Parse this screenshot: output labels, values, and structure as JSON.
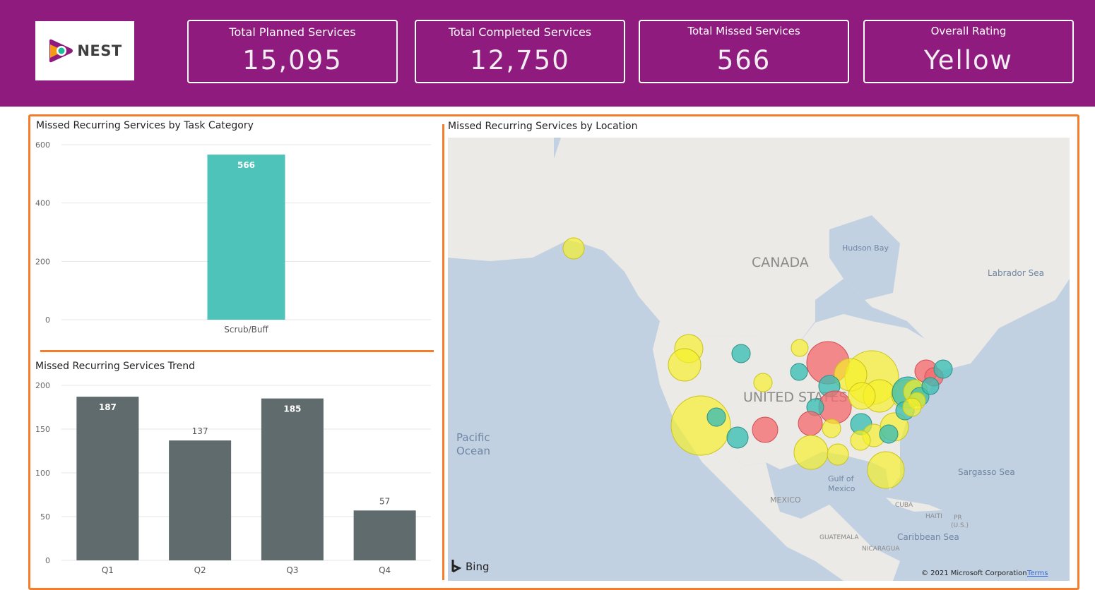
{
  "logo": {
    "text": "NEST"
  },
  "kpis": [
    {
      "label": "Total Planned Services",
      "value": "15,095"
    },
    {
      "label": "Total Completed Services",
      "value": "12,750"
    },
    {
      "label": "Total Missed Services",
      "value": "566"
    },
    {
      "label": "Overall Rating",
      "value": "Yellow"
    }
  ],
  "colors": {
    "header": "#8f1b7f",
    "accent_border": "#f57c2a",
    "teal": "#4dc3b9",
    "dark_bar": "#5f6b6d"
  },
  "chart_data": [
    {
      "type": "bar",
      "title": "Missed Recurring Services by Task Category",
      "categories": [
        "Scrub/Buff"
      ],
      "values": [
        566
      ],
      "data_labels": [
        "566"
      ],
      "ylim": [
        0,
        600
      ],
      "yticks": [
        0,
        200,
        400,
        600
      ],
      "xlabel": "",
      "ylabel": ""
    },
    {
      "type": "bar",
      "title": "Missed Recurring Services Trend",
      "categories": [
        "Q1",
        "Q2",
        "Q3",
        "Q4"
      ],
      "values": [
        187,
        137,
        185,
        57
      ],
      "data_labels": [
        "187",
        "137",
        "185",
        "57"
      ],
      "ylim": [
        0,
        200
      ],
      "yticks": [
        0,
        50,
        100,
        150,
        200
      ],
      "xlabel": "",
      "ylabel": ""
    }
  ],
  "map": {
    "title": "Missed Recurring Services by Location",
    "labels": {
      "canada": "CANADA",
      "united_states": "UNITED STATES",
      "hudson_bay": "Hudson Bay",
      "labrador_sea": "Labrador Sea",
      "pacific": "Pacific",
      "ocean": "Ocean",
      "gulf1": "Gulf of",
      "gulf2": "Mexico",
      "mexico": "MEXICO",
      "sargasso": "Sargasso Sea",
      "cuba": "CUBA",
      "haiti": "HAITI",
      "pr": "PR",
      "us": "(U.S.)",
      "guatemala": "GUATEMALA",
      "nicaragua": "NICARAGUA",
      "caribbean": "Caribbean Sea"
    },
    "bing": "Bing",
    "copyright": "© 2021 Microsoft Corporation",
    "terms": "Terms"
  }
}
